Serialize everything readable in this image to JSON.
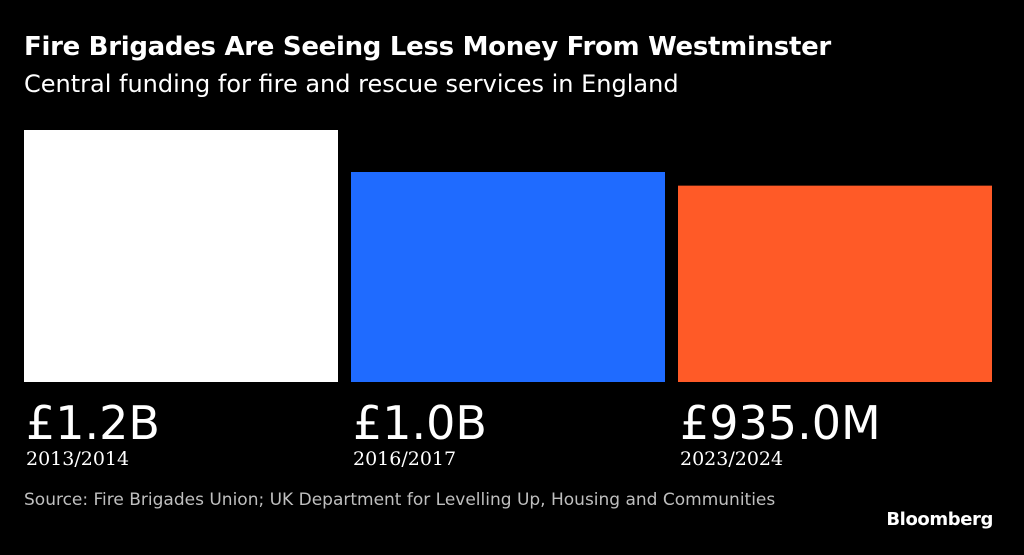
{
  "header": {
    "title": "Fire Brigades Are Seeing Less Money From Westminster",
    "subtitle": "Central funding for fire and rescue services in England"
  },
  "footer": {
    "source": "Source: Fire Brigades Union; UK Department for Levelling Up, Housing and Communities",
    "brand": "Bloomberg"
  },
  "chart_data": {
    "type": "bar",
    "title": "Fire Brigades Are Seeing Less Money From Westminster",
    "subtitle": "Central funding for fire and rescue services in England",
    "categories": [
      "2013/2014",
      "2016/2017",
      "2023/2024"
    ],
    "values": [
      1200,
      1000,
      935
    ],
    "unit": "£ million",
    "value_labels": [
      "£1.2B",
      "£1.0B",
      "£935.0M"
    ],
    "colors": [
      "#ffffff",
      "#1f6bff",
      "#ff5a27"
    ],
    "xlabel": "",
    "ylabel": "",
    "ylim": [
      0,
      1200
    ],
    "grid": false,
    "legend": "none"
  }
}
